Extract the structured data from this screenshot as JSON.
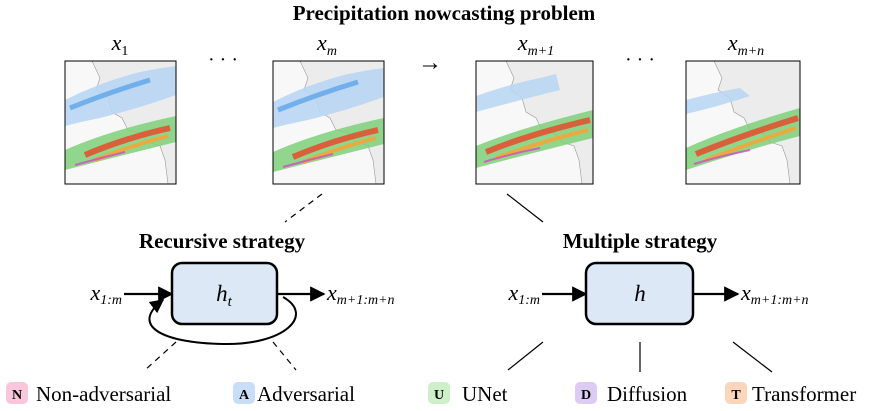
{
  "title": "Precipitation nowcasting problem",
  "frames": [
    {
      "sym": "x",
      "sub": "1"
    },
    {
      "sym": "x",
      "sub": "m"
    },
    {
      "sym": "x",
      "sub": "m+1"
    },
    {
      "sym": "x",
      "sub": "m+n"
    }
  ],
  "ellipsis": "· · ·",
  "arrow_glyph": "→",
  "recursive": {
    "heading": "Recursive strategy",
    "input_sym": "x",
    "input_sub": "1:m",
    "box_sym": "h",
    "box_sub": "t",
    "output_sym": "x",
    "output_sub": "m+1:m+n"
  },
  "multiple": {
    "heading": "Multiple strategy",
    "input_sym": "x",
    "input_sub": "1:m",
    "box_sym": "h",
    "output_sym": "x",
    "output_sub": "m+1:m+n"
  },
  "categories": [
    {
      "letter": "N",
      "label": "Non-adversarial",
      "color": "#f9c6dc"
    },
    {
      "letter": "A",
      "label": "Adversarial",
      "color": "#c8def6"
    },
    {
      "letter": "U",
      "label": "UNet",
      "color": "#cdf0c9"
    },
    {
      "letter": "D",
      "label": "Diffusion",
      "color": "#dccbf3"
    },
    {
      "letter": "T",
      "label": "Transformer",
      "color": "#fbd6bd"
    }
  ],
  "colors": {
    "model_box_fill": "#dce8f5",
    "land": "#efefef",
    "radar_light": "#b9d6f4",
    "radar_green": "#2ea84a",
    "radar_red": "#e54b2c"
  }
}
